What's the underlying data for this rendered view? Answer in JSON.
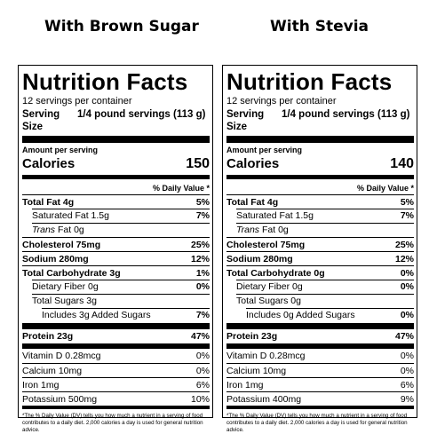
{
  "headings": {
    "left": "With Brown Sugar",
    "right": "With Stevia"
  },
  "labels": [
    {
      "title": "Nutrition Facts",
      "servings_per_container": "12 servings per container",
      "serving_size_label": "Serving Size",
      "serving_size_value": "1/4 pound servings (113 g)",
      "amount_per_serving": "Amount per serving",
      "calories_label": "Calories",
      "calories_value": "150",
      "dv_header": "% Daily Value *",
      "total_fat": {
        "name": "Total Fat 4g",
        "pct": "5%"
      },
      "saturated_fat": {
        "name": "Saturated Fat 1.5g",
        "pct": "7%"
      },
      "trans_fat": {
        "italic": "Trans",
        "rest": " Fat 0g"
      },
      "cholesterol": {
        "name": "Cholesterol 75mg",
        "pct": "25%"
      },
      "sodium": {
        "name": "Sodium 280mg",
        "pct": "12%"
      },
      "total_carb": {
        "name": "Total Carbohydrate 3g",
        "pct": "1%"
      },
      "dietary_fiber": {
        "name": "Dietary Fiber 0g",
        "pct": "0%"
      },
      "total_sugars": {
        "name": "Total Sugars 3g"
      },
      "added_sugars": {
        "name": "Includes 3g Added Sugars",
        "pct": "7%"
      },
      "protein": {
        "name": "Protein 23g",
        "pct": "47%"
      },
      "vitamin_d": {
        "name": "Vitamin D 0.28mcg",
        "pct": "0%"
      },
      "calcium": {
        "name": "Calcium 10mg",
        "pct": "0%"
      },
      "iron": {
        "name": "Iron 1mg",
        "pct": "6%"
      },
      "potassium": {
        "name": "Potassium 500mg",
        "pct": "10%"
      },
      "footnote": "*The % Daily Value (DV) tells you how much a nutrient in a serving of food contributes to a daily diet. 2,000 calories a day is used for general nutrition advice."
    },
    {
      "title": "Nutrition Facts",
      "servings_per_container": "12 servings per container",
      "serving_size_label": "Serving Size",
      "serving_size_value": "1/4 pound servings (113 g)",
      "amount_per_serving": "Amount per serving",
      "calories_label": "Calories",
      "calories_value": "140",
      "dv_header": "% Daily Value *",
      "total_fat": {
        "name": "Total Fat 4g",
        "pct": "5%"
      },
      "saturated_fat": {
        "name": "Saturated Fat 1.5g",
        "pct": "7%"
      },
      "trans_fat": {
        "italic": "Trans",
        "rest": " Fat 0g"
      },
      "cholesterol": {
        "name": "Cholesterol 75mg",
        "pct": "25%"
      },
      "sodium": {
        "name": "Sodium 280mg",
        "pct": "12%"
      },
      "total_carb": {
        "name": "Total Carbohydrate 0g",
        "pct": "0%"
      },
      "dietary_fiber": {
        "name": "Dietary Fiber 0g",
        "pct": "0%"
      },
      "total_sugars": {
        "name": "Total Sugars 0g"
      },
      "added_sugars": {
        "name": "Includes 0g Added Sugars",
        "pct": "0%"
      },
      "protein": {
        "name": "Protein 23g",
        "pct": "47%"
      },
      "vitamin_d": {
        "name": "Vitamin D 0.28mcg",
        "pct": "0%"
      },
      "calcium": {
        "name": "Calcium 10mg",
        "pct": "0%"
      },
      "iron": {
        "name": "Iron 1mg",
        "pct": "6%"
      },
      "potassium": {
        "name": "Potassium 400mg",
        "pct": "9%"
      },
      "footnote": "*The % Daily Value (DV) tells you how much a nutrient in a serving of food contributes to a daily diet. 2,000 calories a day is used for general nutrition advice."
    }
  ]
}
